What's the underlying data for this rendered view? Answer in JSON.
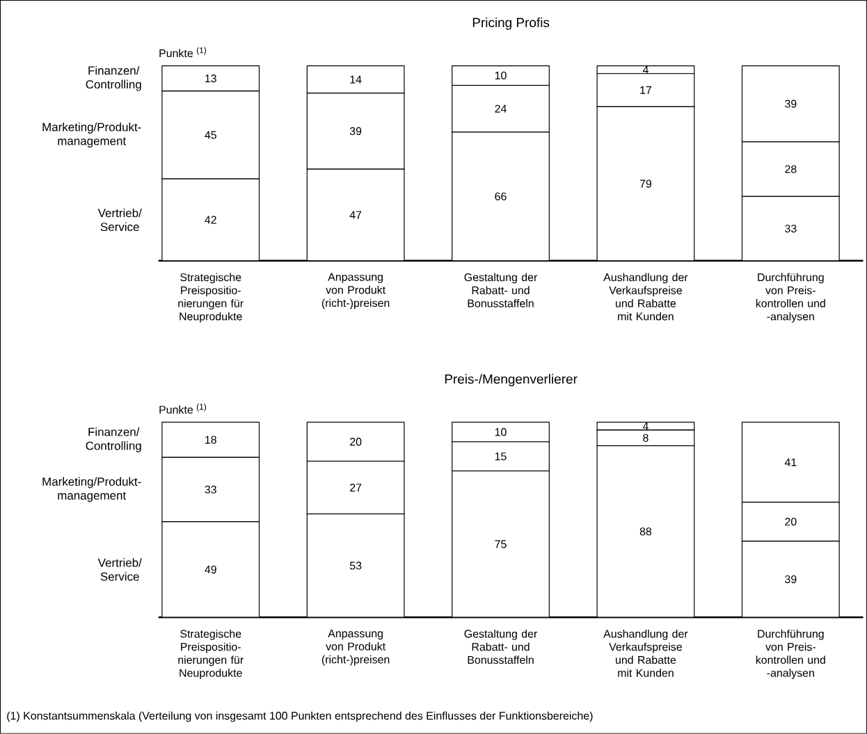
{
  "chart_data": [
    {
      "type": "bar",
      "title": "Pricing Profis",
      "ylabel": "Punkte $^{(1)}$",
      "stacked": true,
      "data_labels": true,
      "tick_labels": "x",
      "categories": [
        "Strategische Preispositio-nierungen für Neuprodukte",
        "Anpassung von Produkt (richt-)preisen",
        "Gestaltung der Rabatt- und Bonusstaffeln",
        "Aushandlung der Verkaufspreise und Rabatte mit Kunden",
        "Durchführung von Preis-kontrollen und -analysen"
      ],
      "series": [
        {
          "name": "Vertrieb/ Service",
          "color": "#ffffff",
          "values": [
            42,
            47,
            66,
            79,
            33
          ]
        },
        {
          "name": "Marketing/Produkt-management",
          "color": "#ffffff",
          "values": [
            45,
            39,
            24,
            17,
            28
          ]
        },
        {
          "name": "Finanzen/ Controlling",
          "color": "#ffffff",
          "values": [
            13,
            14,
            10,
            4,
            39
          ]
        }
      ]
    },
    {
      "type": "bar",
      "title": "Preis-/Mengenverlierer",
      "ylabel": "Punkte $^{(1)}$",
      "stacked": true,
      "data_labels": true,
      "tick_labels": "x",
      "categories": [
        "Strategische Preispositio-nierungen für Neuprodukte",
        "Anpassung von Produkt (richt-)preisen",
        "Gestaltung der Rabatt- und Bonusstaffeln",
        "Aushandlung der Verkaufspreise und Rabatte mit Kunden",
        "Durchführung von Preis-kontrollen und -analysen"
      ],
      "series": [
        {
          "name": "Vertrieb/ Service",
          "color": "#ffffff",
          "values": [
            49,
            53,
            75,
            88,
            39
          ]
        },
        {
          "name": "Marketing/Produkt-management",
          "color": "#ffffff",
          "values": [
            33,
            27,
            15,
            8,
            20
          ]
        },
        {
          "name": "Finanzen/ Controlling",
          "color": "#ffffff",
          "values": [
            18,
            20,
            10,
            4,
            41
          ]
        }
      ],
      "annotations": [
        "(1) Konstantsummenskala (Verteilung von insgesamt 100 Punkten entsprechend des Einflusses der Funktionsbereiche)"
      ]
    }
  ]
}
